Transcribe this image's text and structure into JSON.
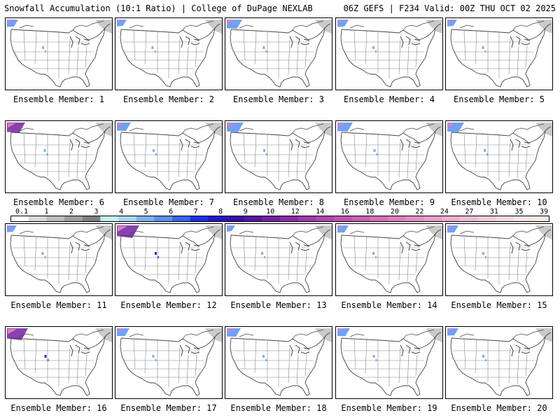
{
  "header": {
    "left_title": "Snowfall Accumulation (10:1 Ratio) | College of DuPage NEXLAB",
    "right_title": "06Z GEFS | F234 Valid: 00Z THU OCT 02 2025"
  },
  "colors": {
    "border": "#000000",
    "map_lines": "#444444",
    "state_lines": "#888888"
  },
  "colorbar": {
    "labels": [
      "0.1",
      "1",
      "2",
      "3",
      "4",
      "5",
      "6",
      "7",
      "8",
      "9",
      "10",
      "12",
      "14",
      "16",
      "18",
      "20",
      "22",
      "24",
      "27",
      "31",
      "35",
      "39"
    ],
    "bins": [
      "#ffffff",
      "#d9d9d9",
      "#bdbdbd",
      "#9e9e9e",
      "#7f7f7f",
      "#c6f0f5",
      "#a9d6f7",
      "#7fb2f0",
      "#5b8ff2",
      "#3a63ef",
      "#1f2fea",
      "#2315c9",
      "#3d0fa8",
      "#5914a0",
      "#7420a3",
      "#8a2ba6",
      "#9e3aab",
      "#b347af",
      "#c552b2",
      "#d061b5",
      "#d86fb9",
      "#df7fbd",
      "#e58fc3",
      "#e89ec8",
      "#ecaecf",
      "#efbdd6",
      "#f2cbdc",
      "#f5d8e3",
      "#f8e3e9",
      "#f9e8df"
    ]
  },
  "members": [
    {
      "label": "Ensemble Member: 1",
      "level": 0.2
    },
    {
      "label": "Ensemble Member: 2",
      "level": 0.15
    },
    {
      "label": "Ensemble Member: 3",
      "level": 0.35
    },
    {
      "label": "Ensemble Member: 4",
      "level": 0.2
    },
    {
      "label": "Ensemble Member: 5",
      "level": 0.15
    },
    {
      "label": "Ensemble Member: 6",
      "level": 0.45
    },
    {
      "label": "Ensemble Member: 7",
      "level": 0.3
    },
    {
      "label": "Ensemble Member: 8",
      "level": 0.4
    },
    {
      "label": "Ensemble Member: 9",
      "level": 0.35
    },
    {
      "label": "Ensemble Member: 10",
      "level": 0.4
    },
    {
      "label": "Ensemble Member: 11",
      "level": 0.15
    },
    {
      "label": "Ensemble Member: 12",
      "level": 0.6
    },
    {
      "label": "Ensemble Member: 13",
      "level": 0.1
    },
    {
      "label": "Ensemble Member: 14",
      "level": 0.2
    },
    {
      "label": "Ensemble Member: 15",
      "level": 0.2
    },
    {
      "label": "Ensemble Member: 16",
      "level": 0.55
    },
    {
      "label": "Ensemble Member: 17",
      "level": 0.25
    },
    {
      "label": "Ensemble Member: 18",
      "level": 0.3
    },
    {
      "label": "Ensemble Member: 19",
      "level": 0.25
    },
    {
      "label": "Ensemble Member: 20",
      "level": 0.2
    }
  ]
}
